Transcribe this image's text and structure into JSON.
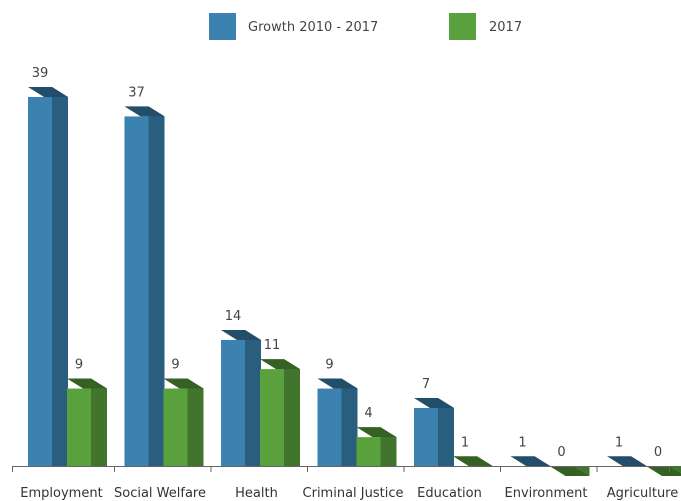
{
  "chart_data": {
    "type": "bar",
    "title": "",
    "xlabel": "",
    "ylabel": "",
    "categories": [
      "Employment",
      "Social Welfare",
      "Health",
      "Criminal Justice",
      "Education",
      "Environment",
      "Agriculture"
    ],
    "series": [
      {
        "name": "Growth 2010 - 2017",
        "values": [
          39,
          37,
          14,
          9,
          7,
          1,
          1
        ],
        "color": "#3b82b0"
      },
      {
        "name": "2017",
        "values": [
          9,
          9,
          11,
          4,
          1,
          0,
          0
        ],
        "color": "#5aa13d"
      }
    ],
    "ylim": [
      0,
      40
    ],
    "grid": false,
    "legend_position": "top-center",
    "data_labels": true,
    "style": "3d-columns"
  }
}
